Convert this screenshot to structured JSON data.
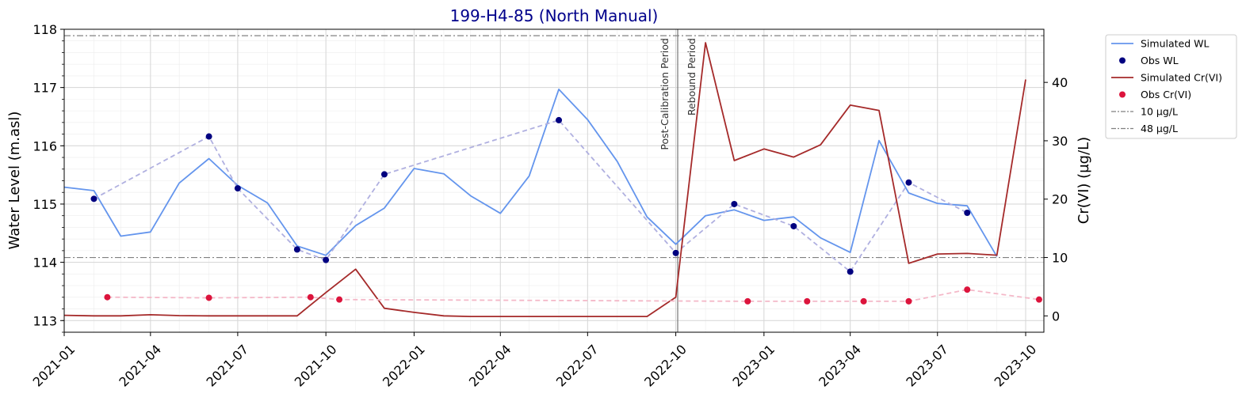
{
  "chart_data": {
    "type": "line",
    "title": "199-H4-85 (North Manual)",
    "title_color": "#00008b",
    "xlabel": "",
    "ylabel_left": "Water Level (m.asl)",
    "ylabel_right": "Cr(VI) (µg/L)",
    "x_range": [
      "2021-01-01",
      "2023-10-20"
    ],
    "ylim_left": [
      112.8,
      118
    ],
    "ylim_right": [
      -2.8,
      49.1
    ],
    "x_ticks": [
      "2021-01",
      "2021-04",
      "2021-07",
      "2021-10",
      "2022-01",
      "2022-04",
      "2022-07",
      "2022-10",
      "2023-01",
      "2023-04",
      "2023-07",
      "2023-10"
    ],
    "y_ticks_left": [
      113,
      114,
      115,
      116,
      117,
      118
    ],
    "y_ticks_right": [
      0,
      10,
      20,
      30,
      40
    ],
    "grid": true,
    "legend_position": "outside-top-right",
    "series": [
      {
        "name": "Simulated WL",
        "axis": "left",
        "kind": "line",
        "color": "#6495ed",
        "x": [
          "2021-01-01",
          "2021-02-01",
          "2021-03-01",
          "2021-04-01",
          "2021-05-01",
          "2021-06-01",
          "2021-07-01",
          "2021-08-01",
          "2021-09-01",
          "2021-10-01",
          "2021-11-01",
          "2021-12-01",
          "2022-01-01",
          "2022-02-01",
          "2022-03-01",
          "2022-04-01",
          "2022-05-01",
          "2022-06-01",
          "2022-07-01",
          "2022-08-01",
          "2022-09-01",
          "2022-10-01",
          "2022-11-01",
          "2022-12-01",
          "2023-01-01",
          "2023-02-01",
          "2023-03-01",
          "2023-04-01",
          "2023-05-01",
          "2023-06-01",
          "2023-07-01",
          "2023-08-01",
          "2023-09-01"
        ],
        "y": [
          115.29,
          115.23,
          114.45,
          114.52,
          115.36,
          115.78,
          115.32,
          115.02,
          114.28,
          114.12,
          114.63,
          114.93,
          115.61,
          115.52,
          115.14,
          114.84,
          115.48,
          116.97,
          116.45,
          115.73,
          114.78,
          114.31,
          114.8,
          114.9,
          114.72,
          114.78,
          114.42,
          114.17,
          116.09,
          115.19,
          115.01,
          114.97,
          114.1
        ]
      },
      {
        "name": "Obs WL",
        "axis": "left",
        "kind": "markers",
        "color": "#000080",
        "connector_color": "#b0b0e0",
        "x": [
          "2021-02-01",
          "2021-06-01",
          "2021-07-01",
          "2021-09-01",
          "2021-10-01",
          "2021-12-01",
          "2022-06-01",
          "2022-10-01",
          "2022-12-01",
          "2023-02-01",
          "2023-04-01",
          "2023-06-01",
          "2023-08-01"
        ],
        "y": [
          115.09,
          116.16,
          115.27,
          114.22,
          114.04,
          115.51,
          116.44,
          114.16,
          115.0,
          114.62,
          113.84,
          115.37,
          114.85
        ]
      },
      {
        "name": "Simulated Cr(VI)",
        "axis": "right",
        "kind": "line",
        "color": "#a52a2a",
        "x": [
          "2021-01-01",
          "2021-02-01",
          "2021-03-01",
          "2021-04-01",
          "2021-05-01",
          "2021-06-01",
          "2021-07-01",
          "2021-08-01",
          "2021-09-01",
          "2021-10-01",
          "2021-11-01",
          "2021-12-01",
          "2022-01-01",
          "2022-02-01",
          "2022-03-01",
          "2022-04-01",
          "2022-05-01",
          "2022-06-01",
          "2022-07-01",
          "2022-08-01",
          "2022-09-01",
          "2022-10-01",
          "2022-11-01",
          "2022-12-01",
          "2023-01-01",
          "2023-02-01",
          "2023-03-01",
          "2023-04-01",
          "2023-05-01",
          "2023-06-01",
          "2023-07-01",
          "2023-08-01",
          "2023-09-01",
          "2023-10-01"
        ],
        "y": [
          0.1,
          0.0,
          0.0,
          0.2,
          0.05,
          0.0,
          0.0,
          0.0,
          0.0,
          4.0,
          8.0,
          1.3,
          0.6,
          0.0,
          -0.1,
          -0.1,
          -0.1,
          -0.1,
          -0.1,
          -0.1,
          -0.1,
          3.2,
          46.8,
          26.6,
          28.6,
          27.2,
          29.3,
          36.1,
          35.2,
          9.0,
          10.6,
          10.7,
          10.4,
          40.5
        ]
      },
      {
        "name": "Obs Cr(VI)",
        "axis": "right",
        "kind": "markers",
        "color": "#dc143c",
        "connector_color": "#f4b8c8",
        "x": [
          "2021-02-15",
          "2021-06-01",
          "2021-09-15",
          "2021-10-15",
          "2022-12-15",
          "2023-02-15",
          "2023-04-15",
          "2023-06-01",
          "2023-08-01",
          "2023-10-15"
        ],
        "y": [
          3.2,
          3.1,
          3.2,
          2.8,
          2.5,
          2.5,
          2.5,
          2.5,
          4.5,
          2.8
        ]
      }
    ],
    "reference_lines": [
      {
        "name": "10 µg/L",
        "axis": "right",
        "value": 10,
        "style": "dashdot",
        "color": "#808080"
      },
      {
        "name": "48 µg/L",
        "axis": "right",
        "value": 48,
        "style": "dashdot",
        "color": "#808080"
      }
    ],
    "vertical_markers": [
      {
        "x": "2022-10-03",
        "labels": [
          "Post-Calibration Period",
          "Rebound Period"
        ],
        "color": "#808080"
      }
    ]
  }
}
